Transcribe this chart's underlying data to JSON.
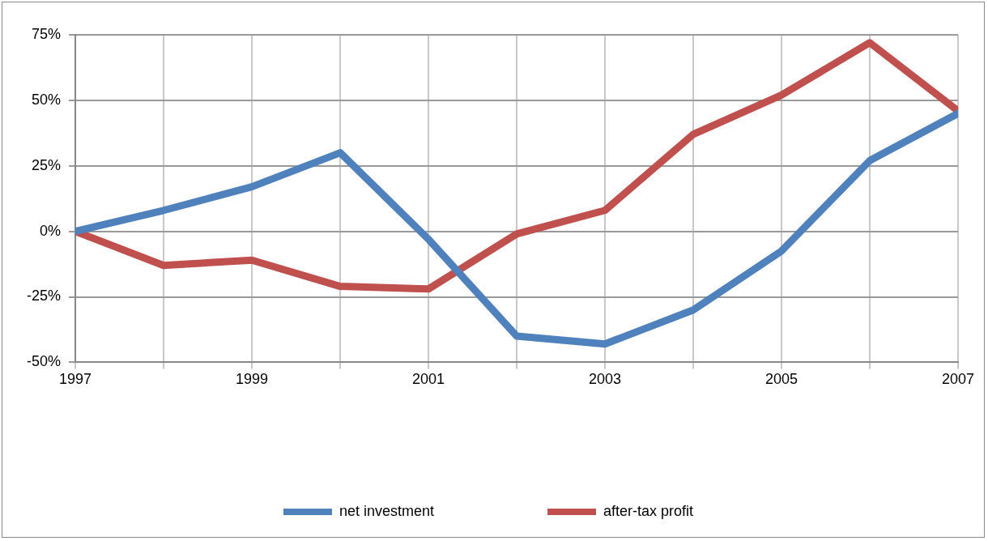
{
  "chart_data": {
    "type": "line",
    "x": [
      1997,
      1998,
      1999,
      2000,
      2001,
      2002,
      2003,
      2004,
      2005,
      2006,
      2007
    ],
    "series": [
      {
        "name": "net investment",
        "color": "#4f81bd",
        "values": [
          0,
          8,
          17,
          30,
          -3,
          -40,
          -43,
          -30,
          -7.5,
          27,
          45
        ]
      },
      {
        "name": "after-tax profit",
        "color": "#c0504d",
        "values": [
          0,
          -13,
          -11,
          -21,
          -22,
          -1,
          8,
          37,
          52,
          72,
          46
        ]
      }
    ],
    "xlim": [
      1997,
      2007
    ],
    "xticks": [
      1997,
      {
        "value": 1998,
        "label": null
      },
      1999,
      {
        "value": 2000,
        "label": null
      },
      2001,
      {
        "value": 2002,
        "label": null
      },
      2003,
      {
        "value": 2004,
        "label": null
      },
      2005,
      {
        "value": 2006,
        "label": null
      },
      2007
    ],
    "ylim": [
      -50,
      75
    ],
    "yticks": [
      {
        "value": -50,
        "label": "-50%"
      },
      {
        "value": -25,
        "label": "-25%"
      },
      {
        "value": 0,
        "label": "0%"
      },
      {
        "value": 25,
        "label": "25%"
      },
      {
        "value": 50,
        "label": "50%"
      },
      {
        "value": 75,
        "label": "75%"
      }
    ],
    "grid": true,
    "legend": "bottom",
    "marker": "none",
    "line_style": "solid"
  }
}
